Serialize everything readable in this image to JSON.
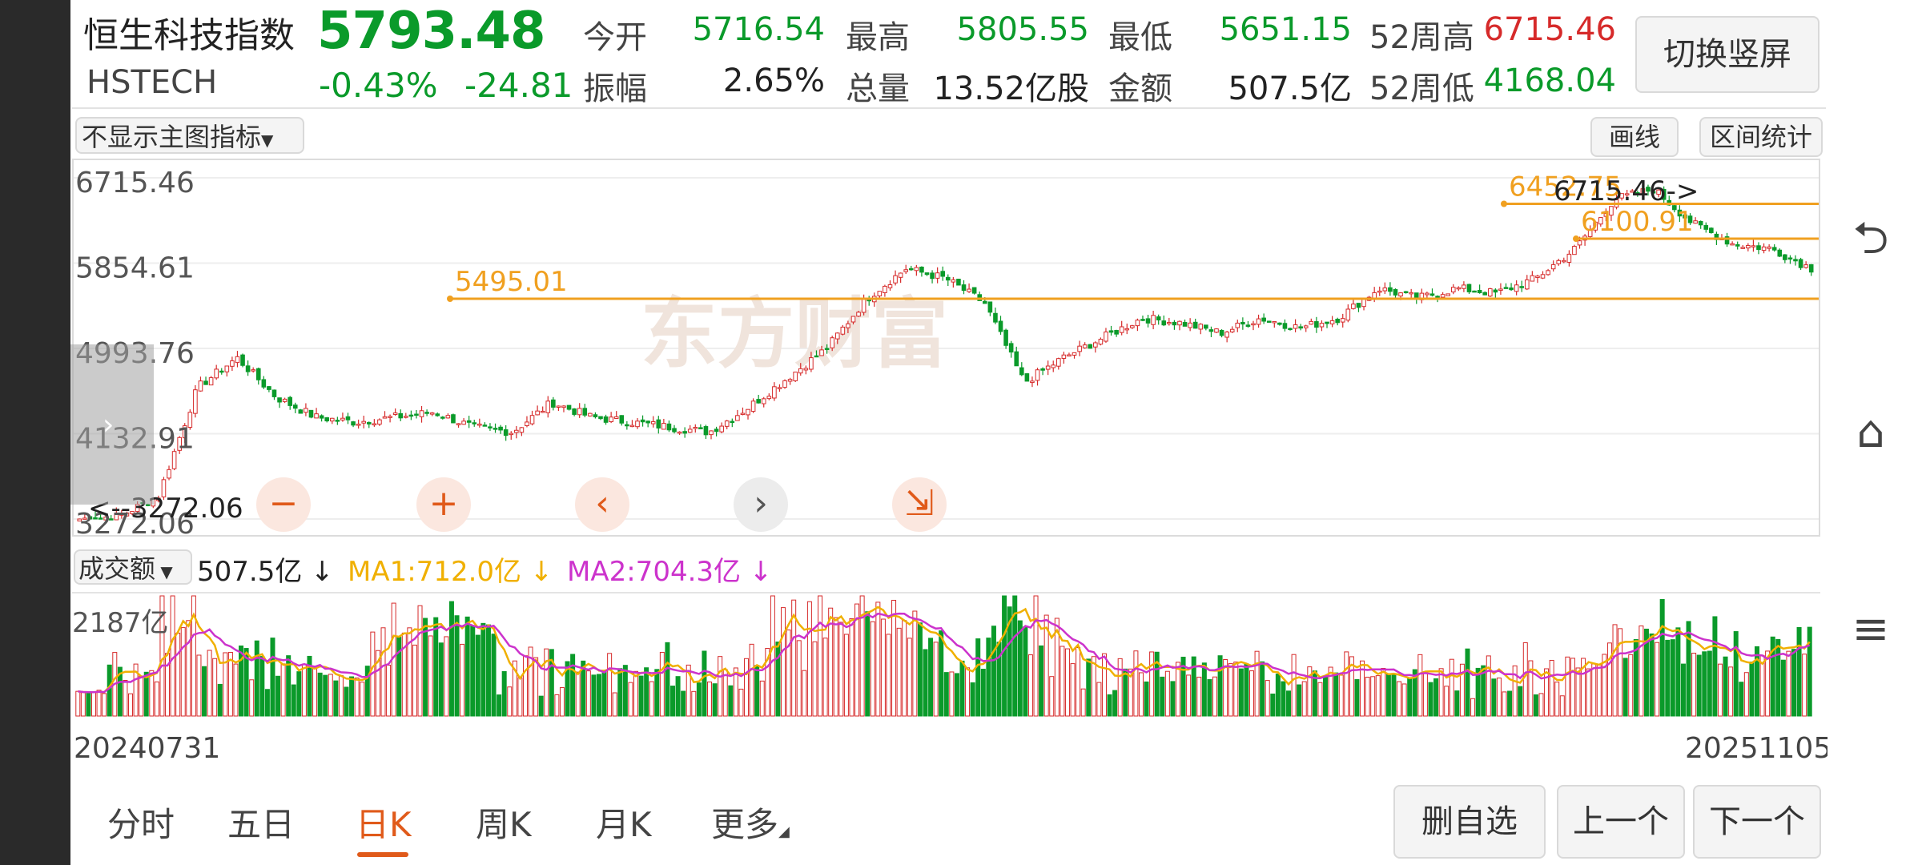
{
  "header": {
    "name": "恒生科技指数",
    "code": "HSTECH",
    "price": "5793.48",
    "change_pct": "-0.43%",
    "change_abs": "-24.81",
    "stats": [
      {
        "label": "今开",
        "value": "5716.54",
        "color": "green"
      },
      {
        "label": "最高",
        "value": "5805.55",
        "color": "green"
      },
      {
        "label": "最低",
        "value": "5651.15",
        "color": "green"
      },
      {
        "label": "52周高",
        "value": "6715.46",
        "color": "red"
      },
      {
        "label": "振幅",
        "value": "2.65%",
        "color": "dark"
      },
      {
        "label": "总量",
        "value": "13.52亿股",
        "color": "dark"
      },
      {
        "label": "金额",
        "value": "507.5亿",
        "color": "dark"
      },
      {
        "label": "52周低",
        "value": "4168.04",
        "color": "green"
      }
    ],
    "switch_button": "切换竖屏"
  },
  "toolbar": {
    "indicator_select": "不显示主图指标",
    "draw_line_button": "画线",
    "range_stats_button": "区间统计"
  },
  "watermark": "东方财富",
  "controls": {
    "zoom_out": "−",
    "zoom_in": "+",
    "prev": "‹",
    "next": "›",
    "shrink": "⇲"
  },
  "volume_panel": {
    "selector": "成交额",
    "current": "507.5亿 ↓",
    "ma1": "MA1:712.0亿 ↓",
    "ma2": "MA2:704.3亿 ↓",
    "max_label": "2187亿",
    "colors": {
      "ma1": "#f0b000",
      "ma2": "#cc33cc"
    }
  },
  "x_axis": {
    "start": "20240731",
    "end": "20251105"
  },
  "tabs": [
    {
      "label": "分时",
      "active": false
    },
    {
      "label": "五日",
      "active": false
    },
    {
      "label": "日K",
      "active": true
    },
    {
      "label": "周K",
      "active": false
    },
    {
      "label": "月K",
      "active": false
    },
    {
      "label": "更多",
      "active": false
    }
  ],
  "bottom_buttons": {
    "remove_watch": "删自选",
    "prev_item": "上一个",
    "next_item": "下一个"
  },
  "right_rail_icons": [
    "back-icon",
    "home-icon",
    "menu-icon"
  ],
  "colors": {
    "up": "#d62a2a",
    "down": "#0a9a2a",
    "accent": "#e05a1a",
    "line": "#f0a020"
  },
  "chart_data": {
    "type": "candlestick",
    "title": "",
    "y_tick_labels": [
      "6715.46",
      "5854.61",
      "4993.76",
      "4132.91",
      "3272.06"
    ],
    "ylim": [
      3272.06,
      6715.46
    ],
    "x_range": [
      "20240731",
      "20251105"
    ],
    "annotations": {
      "high_label": "6715.46->",
      "low_label": "<--3272.06",
      "drawn_lines": [
        "5495.01",
        "6452.75",
        "6100.91"
      ]
    },
    "close_series_approx": [
      3272,
      3300,
      3500,
      4600,
      4900,
      4500,
      4300,
      4250,
      4300,
      4350,
      4200,
      4150,
      4450,
      4300,
      4250,
      4200,
      4150,
      4400,
      4700,
      5000,
      5500,
      5800,
      5700,
      5450,
      4650,
      4900,
      5100,
      5300,
      5250,
      5150,
      5300,
      5200,
      5300,
      5600,
      5500,
      5600,
      5550,
      5700,
      6000,
      6500,
      6600,
      6250,
      6050,
      6000,
      5800
    ]
  }
}
